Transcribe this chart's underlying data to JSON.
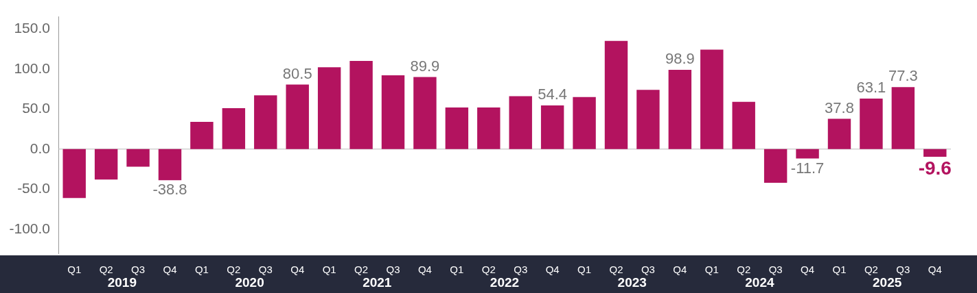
{
  "chart_data": {
    "type": "bar",
    "categories": [
      "Q1",
      "Q2",
      "Q3",
      "Q4",
      "Q1",
      "Q2",
      "Q3",
      "Q4",
      "Q1",
      "Q2",
      "Q3",
      "Q4",
      "Q1",
      "Q2",
      "Q3",
      "Q4",
      "Q1",
      "Q2",
      "Q3",
      "Q4",
      "Q1",
      "Q2",
      "Q3",
      "Q4",
      "Q1",
      "Q2",
      "Q3",
      "Q4"
    ],
    "values": [
      -61,
      -38,
      -22,
      -38.8,
      34,
      51,
      67,
      80.5,
      102,
      110,
      92,
      89.9,
      52,
      52,
      66,
      54.4,
      65,
      135,
      74,
      98.9,
      124,
      59,
      -42,
      -11.7,
      37.8,
      63.1,
      77.3,
      -9.6
    ],
    "value_labels": [
      null,
      null,
      null,
      "-38.8",
      null,
      null,
      null,
      "80.5",
      null,
      null,
      null,
      "89.9",
      null,
      null,
      null,
      "54.4",
      null,
      null,
      null,
      "98.9",
      null,
      null,
      null,
      "-11.7",
      "37.8",
      "63.1",
      "77.3",
      "-9.6"
    ],
    "color": "#b3135f",
    "annotations": [
      "2019",
      "2020",
      "2021",
      "2022",
      "2023",
      "2024",
      "2025"
    ],
    "ylim": [
      -130,
      165
    ],
    "yticks": [
      {
        "value": -100,
        "label": "-100.0"
      },
      {
        "value": -50,
        "label": "-50.0"
      },
      {
        "value": 0,
        "label": "0.0"
      },
      {
        "value": 50,
        "label": "50.0"
      },
      {
        "value": 100,
        "label": "100.0"
      },
      {
        "value": 150,
        "label": "150.0"
      }
    ],
    "ref_lines": [
      {
        "axis": "y",
        "value": 0,
        "color": "#bbbbbb"
      }
    ],
    "grid": false,
    "legend": false
  }
}
